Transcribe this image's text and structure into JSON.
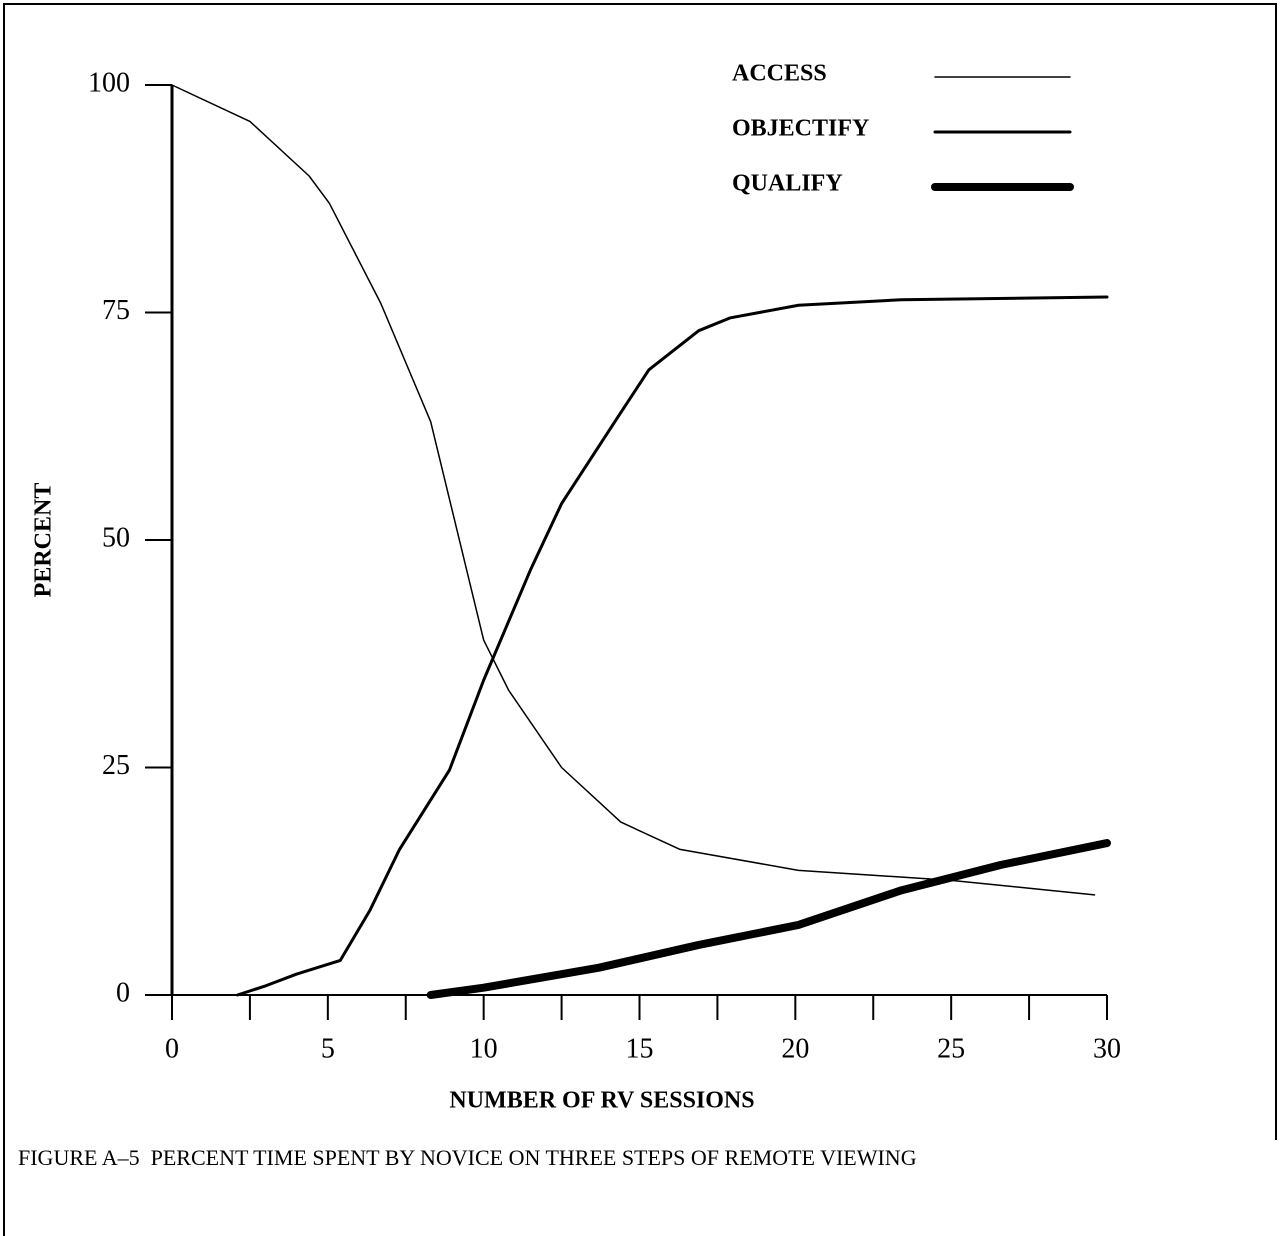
{
  "chart_data": {
    "type": "line",
    "caption": "FIGURE A–5  PERCENT TIME SPENT BY NOVICE ON THREE STEPS OF REMOTE VIEWING",
    "xlabel": "NUMBER OF RV SESSIONS",
    "ylabel": "PERCENT",
    "xlim": [
      0,
      30
    ],
    "ylim": [
      0,
      100
    ],
    "xticks": [
      0,
      5,
      10,
      15,
      20,
      25,
      30
    ],
    "xminorticks": [
      2.5,
      7.5,
      12.5,
      17.5,
      22.5,
      27.5
    ],
    "yticks": [
      0,
      25,
      50,
      75,
      100
    ],
    "grid": false,
    "legend": "upper right",
    "series": [
      {
        "name": "ACCESS",
        "color": "#000000",
        "width": 1.5,
        "x": [
          0,
          2.5,
          4.4,
          5.05,
          6.7,
          8.3,
          10,
          10.8,
          12.5,
          14.4,
          16.3,
          20.1,
          25,
          29.6
        ],
        "values": [
          100,
          96,
          90,
          87,
          76,
          63,
          39,
          33.5,
          25,
          19,
          16,
          13.7,
          12.6,
          11
        ]
      },
      {
        "name": "OBJECTIFY",
        "color": "#000000",
        "width": 3,
        "x": [
          2.1,
          3,
          4,
          5.4,
          6.35,
          7.3,
          8.9,
          10,
          11.5,
          12.5,
          14.4,
          15.3,
          16.9,
          17.9,
          20.1,
          23.4,
          30
        ],
        "values": [
          0,
          1,
          2.3,
          3.8,
          9.3,
          16,
          24.7,
          34.6,
          46.7,
          54,
          64,
          68.7,
          73,
          74.4,
          75.8,
          76.4,
          76.7
        ]
      },
      {
        "name": "QUALIFY",
        "color": "#000000",
        "width": 8,
        "x": [
          8.3,
          10,
          13.7,
          16.9,
          20.1,
          23.4,
          26.6,
          30
        ],
        "values": [
          0,
          0.8,
          3,
          5.5,
          7.7,
          11.5,
          14.3,
          16.7
        ]
      }
    ]
  }
}
